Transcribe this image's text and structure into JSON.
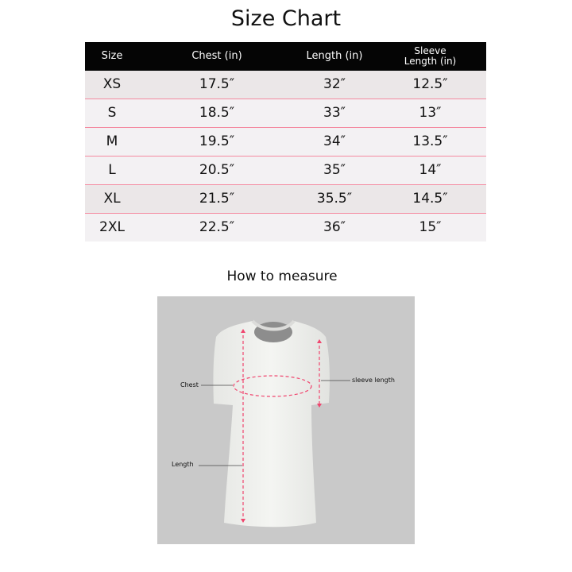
{
  "title": "Size Chart",
  "table": {
    "headers": [
      "Size",
      "Chest (in)",
      "Length (in)",
      "Sleeve Length (in)"
    ],
    "header_sleeve_line1": "Sleeve",
    "header_sleeve_line2": "Length (in)",
    "rows": [
      [
        "XS",
        "17.5″",
        "32″",
        "12.5″"
      ],
      [
        "S",
        "18.5″",
        "33″",
        "13″"
      ],
      [
        "M",
        "19.5″",
        "34″",
        "13.5″"
      ],
      [
        "L",
        "20.5″",
        "35″",
        "14″"
      ],
      [
        "XL",
        "21.5″",
        "35.5″",
        "14.5″"
      ],
      [
        "2XL",
        "22.5″",
        "36″",
        "15″"
      ]
    ]
  },
  "measure": {
    "heading": "How to measure",
    "labels": {
      "chest": "Chest",
      "sleeve": "sleeve length",
      "length": "Length"
    }
  },
  "colors": {
    "header_bg": "#050505",
    "separator": "#f48aa0",
    "guide": "#f0456e",
    "panel_bg": "#c9c9c9"
  }
}
